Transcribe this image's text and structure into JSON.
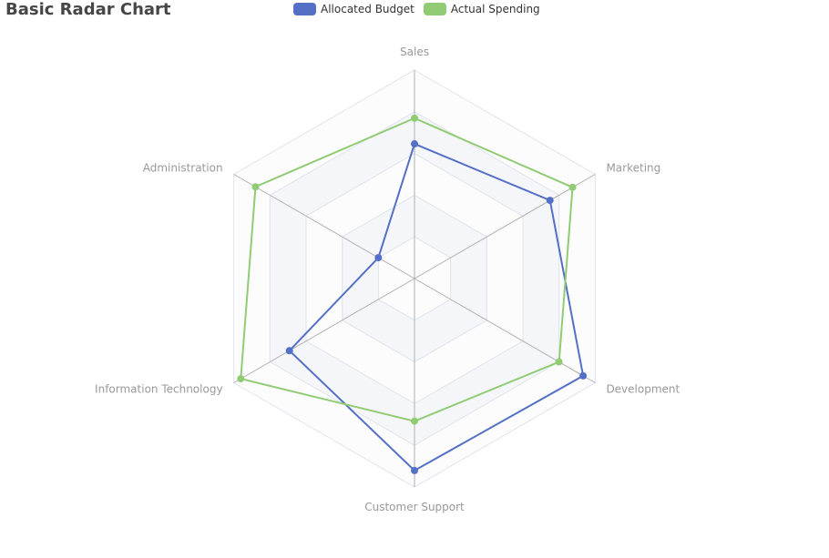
{
  "chart_data": {
    "type": "radar",
    "title": "Basic Radar Chart",
    "indicators": [
      {
        "name": "Sales",
        "max": 6500
      },
      {
        "name": "Marketing",
        "max": 16000
      },
      {
        "name": "Development",
        "max": 30000
      },
      {
        "name": "Customer Support",
        "max": 38000
      },
      {
        "name": "Information Technology",
        "max": 52000
      },
      {
        "name": "Administration",
        "max": 25000
      }
    ],
    "series": [
      {
        "name": "Allocated Budget",
        "color": "#5470c6",
        "values": [
          4200,
          12000,
          28000,
          35000,
          36000,
          5000
        ]
      },
      {
        "name": "Actual Spending",
        "color": "#91cc75",
        "values": [
          5000,
          14000,
          24000,
          26000,
          50000,
          22000
        ]
      }
    ],
    "legend_position": "top-center",
    "split_number": 5
  }
}
